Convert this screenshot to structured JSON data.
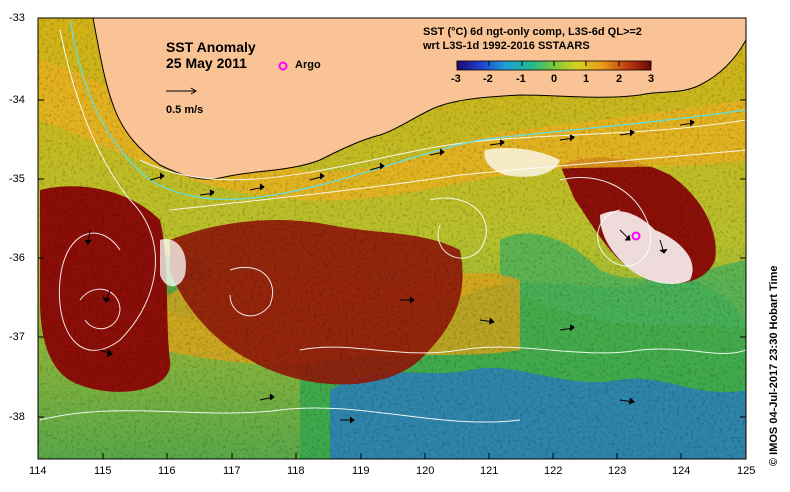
{
  "map": {
    "title": "SST Anomaly",
    "date": "25 May 2011",
    "argo_label": "Argo",
    "arrow_label": "0.5 m/s",
    "product_line1": "SST (°C) 6d ngt-only comp, L3S-6d QL>=2",
    "product_line2": "wrt L3S-1d 1992-2016 SSTAARS",
    "colorbar_ticks": [
      "-3",
      "-2",
      "-1",
      "0",
      "1",
      "2",
      "3"
    ],
    "lat_ticks": [
      "-33",
      "-34",
      "-35",
      "-36",
      "-37",
      "-38"
    ],
    "lon_ticks": [
      "114",
      "115",
      "116",
      "117",
      "118",
      "119",
      "120",
      "121",
      "122",
      "123",
      "124",
      "125"
    ],
    "credit": "© IMOS 04-Jul-2017 23:30 Hobart Time",
    "argo_position": {
      "lon": 123.25,
      "lat": -35.72
    },
    "extent": {
      "lon": [
        114,
        125
      ],
      "lat": [
        -38.5,
        -33
      ]
    },
    "colors": {
      "land": "#f9c395",
      "warm_strong": "#8b0e08",
      "warm": "#d89a14",
      "neutral": "#bfc92a",
      "cool": "#2e9c52",
      "cold": "#1f6fd0",
      "argo": "#ff00ff"
    }
  }
}
